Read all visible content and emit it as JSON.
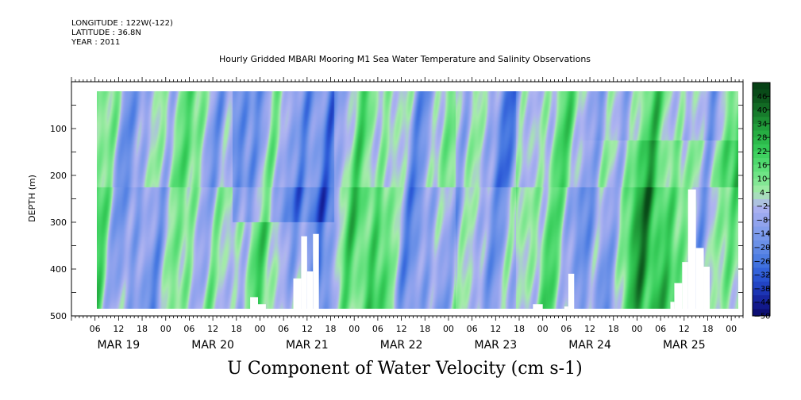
{
  "header": {
    "longitude": "LONGITUDE : 122W(-122)",
    "latitude": "LATITUDE : 36.8N",
    "year": "YEAR : 2011",
    "plot_title": "Hourly Gridded MBARI Mooring M1 Sea Water Temperature and Salinity Observations"
  },
  "chart_data": {
    "type": "heatmap",
    "title": "U Component of Water Velocity (cm s-1)",
    "ylabel": "DEPTH (m)",
    "ylim": [
      500,
      0
    ],
    "y_ticks": [
      100,
      200,
      300,
      400,
      500
    ],
    "hour_tick_labels": [
      "06",
      "12",
      "18",
      "00",
      "06",
      "12",
      "18",
      "00",
      "06",
      "12",
      "18",
      "00",
      "06",
      "12",
      "18",
      "00",
      "06",
      "12",
      "18",
      "00",
      "06",
      "12",
      "18",
      "00",
      "06",
      "12",
      "18",
      "00"
    ],
    "day_labels": [
      "MAR 19",
      "MAR 20",
      "MAR 21",
      "MAR 22",
      "MAR 23",
      "MAR 24",
      "MAR 25"
    ],
    "colorbar": {
      "labels": [
        "46",
        "40",
        "34",
        "28",
        "22",
        "16",
        "10",
        "4",
        "-2",
        "-8",
        "-14",
        "-20",
        "-26",
        "-32",
        "-38",
        "-44",
        "-50"
      ],
      "min": -50,
      "max": 52
    },
    "data_depth_range": [
      20,
      485
    ],
    "missing_regions": [
      {
        "t_start": 45.5,
        "t_end": 47.5,
        "depth_from": 460
      },
      {
        "t_start": 47.5,
        "t_end": 49.5,
        "depth_from": 475
      },
      {
        "t_start": 56.5,
        "t_end": 58.5,
        "depth_from": 420
      },
      {
        "t_start": 58.5,
        "t_end": 60.0,
        "depth_from": 330
      },
      {
        "t_start": 60.0,
        "t_end": 61.5,
        "depth_from": 405
      },
      {
        "t_start": 61.5,
        "t_end": 63.0,
        "depth_from": 325
      },
      {
        "t_start": 117.5,
        "t_end": 120.0,
        "depth_from": 475
      },
      {
        "t_start": 125.5,
        "t_end": 126.5,
        "depth_from": 480
      },
      {
        "t_start": 126.5,
        "t_end": 128.0,
        "depth_from": 410
      },
      {
        "t_start": 152.5,
        "t_end": 153.5,
        "depth_from": 470
      },
      {
        "t_start": 153.5,
        "t_end": 155.5,
        "depth_from": 430
      },
      {
        "t_start": 155.5,
        "t_end": 157.0,
        "depth_from": 385
      },
      {
        "t_start": 157.0,
        "t_end": 159.0,
        "depth_from": 230
      },
      {
        "t_start": 159.0,
        "t_end": 161.0,
        "depth_from": 355
      },
      {
        "t_start": 161.0,
        "t_end": 162.5,
        "depth_from": 395
      }
    ]
  }
}
